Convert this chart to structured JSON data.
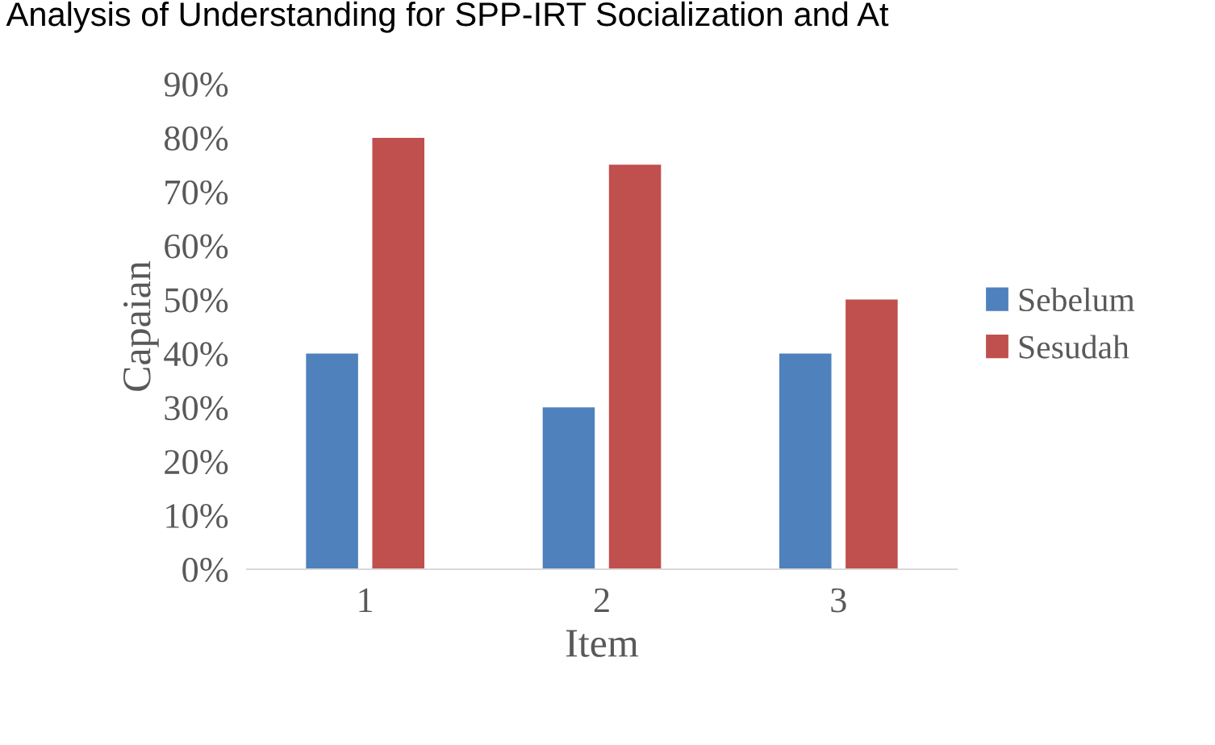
{
  "chart_data": {
    "type": "bar",
    "title": "Analysis of Understanding for SPP-IRT Socialization and At",
    "xlabel": "Item",
    "ylabel": "Capaian",
    "categories": [
      "1",
      "2",
      "3"
    ],
    "series": [
      {
        "name": "Sebelum",
        "color": "#4f81bd",
        "values": [
          40,
          30,
          40
        ]
      },
      {
        "name": "Sesudah",
        "color": "#c0504d",
        "values": [
          80,
          75,
          50
        ]
      }
    ],
    "ylim": [
      0,
      90
    ],
    "yticks": [
      {
        "value": 0,
        "label": "0%"
      },
      {
        "value": 10,
        "label": "10%"
      },
      {
        "value": 20,
        "label": "20%"
      },
      {
        "value": 30,
        "label": "30%"
      },
      {
        "value": 40,
        "label": "40%"
      },
      {
        "value": 50,
        "label": "50%"
      },
      {
        "value": 60,
        "label": "60%"
      },
      {
        "value": 70,
        "label": "70%"
      },
      {
        "value": 80,
        "label": "80%"
      },
      {
        "value": 90,
        "label": "90%"
      }
    ],
    "grid": false,
    "legend": "right"
  }
}
